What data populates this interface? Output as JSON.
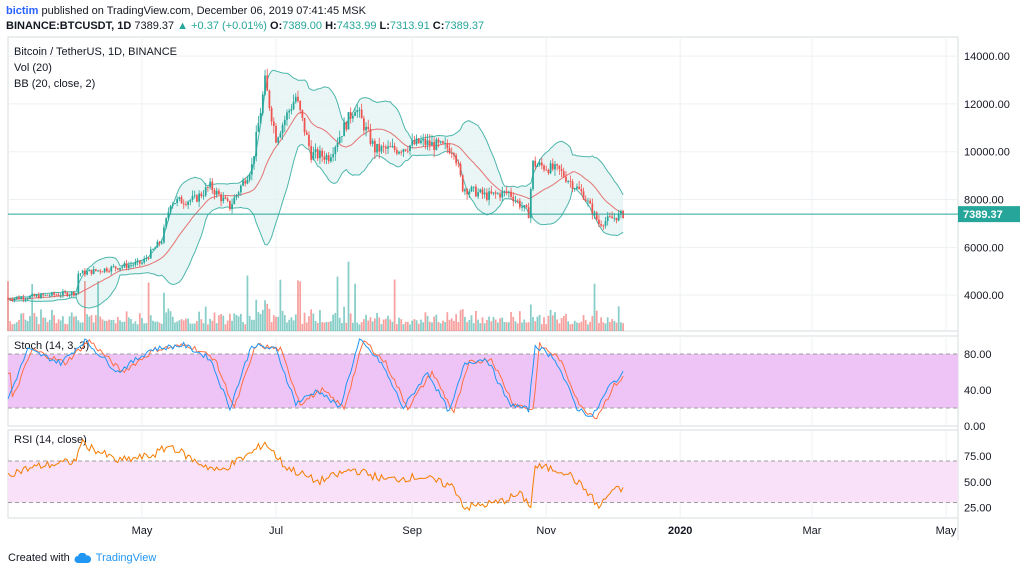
{
  "header": {
    "author": "bictim",
    "published": "published on TradingView.com, December 06, 2019 07:41:45 MSK"
  },
  "ohlc_bar": {
    "symbol": "BINANCE:BTCUSDT, 1D",
    "last": "7389.37",
    "arrow": "▲",
    "change": "+0.37 (+0.01%)",
    "o_label": "O:",
    "o_value": "7389.00",
    "h_label": "H:",
    "h_value": "7433.99",
    "l_label": "L:",
    "l_value": "7313.91",
    "c_label": "C:",
    "c_value": "7389.37"
  },
  "colors": {
    "up": "#26a69a",
    "down": "#ef5350",
    "bb_band": "#4db6ac",
    "bb_fill": "#e0f2f1",
    "bb_basis": "#e57373",
    "stoch_k": "#2196f3",
    "stoch_d": "#ff7043",
    "stoch_fill": "#eec4f7",
    "rsi": "#f57c00",
    "rsi_fill": "#f8e1f9",
    "lastline": "#26a69a"
  },
  "footer": {
    "prefix": "Created with",
    "brand": "TradingView",
    "icon": "tradingview-cloud-icon"
  },
  "chart_data": [
    {
      "type": "candlestick",
      "title": "Bitcoin / TetherUS, 1D, BINANCE",
      "indicators": [
        "Vol (20)",
        "BB (20, close, 2)"
      ],
      "x_ticks": [
        "May",
        "Jul",
        "Sep",
        "Nov",
        "2020",
        "Mar",
        "May"
      ],
      "y_ticks": [
        "14000.00",
        "12000.00",
        "10000.00",
        "8000.00",
        "6000.00",
        "4000.00"
      ],
      "ylim": [
        2500,
        14800
      ],
      "last_price_label": "7389.37",
      "series": [
        {
          "name": "close",
          "points": [
            [
              "2019-03-01",
              3850
            ],
            [
              "2019-03-20",
              4000
            ],
            [
              "2019-04-01",
              4100
            ],
            [
              "2019-04-02",
              4900
            ],
            [
              "2019-04-15",
              5100
            ],
            [
              "2019-05-01",
              5350
            ],
            [
              "2019-05-10",
              6300
            ],
            [
              "2019-05-14",
              7900
            ],
            [
              "2019-05-25",
              8000
            ],
            [
              "2019-06-01",
              8550
            ],
            [
              "2019-06-10",
              7700
            ],
            [
              "2019-06-20",
              9400
            ],
            [
              "2019-06-26",
              12900
            ],
            [
              "2019-07-01",
              10600
            ],
            [
              "2019-07-10",
              12300
            ],
            [
              "2019-07-17",
              9900
            ],
            [
              "2019-07-25",
              9800
            ],
            [
              "2019-08-06",
              11900
            ],
            [
              "2019-08-15",
              10100
            ],
            [
              "2019-08-25",
              10100
            ],
            [
              "2019-09-05",
              10400
            ],
            [
              "2019-09-20",
              10100
            ],
            [
              "2019-09-24",
              8500
            ],
            [
              "2019-10-05",
              8150
            ],
            [
              "2019-10-15",
              8300
            ],
            [
              "2019-10-24",
              7400
            ],
            [
              "2019-10-26",
              9500
            ],
            [
              "2019-11-07",
              9200
            ],
            [
              "2019-11-18",
              8200
            ],
            [
              "2019-11-25",
              7000
            ],
            [
              "2019-12-06",
              7389
            ]
          ]
        }
      ]
    },
    {
      "type": "line",
      "title": "Stoch (14, 3, 3)",
      "y_ticks": [
        "80.00",
        "40.00",
        "0.00"
      ],
      "ylim": [
        0,
        100
      ],
      "bands": [
        20,
        80
      ],
      "series": [
        {
          "name": "%K",
          "points": [
            [
              "2019-03-01",
              30
            ],
            [
              "2019-03-10",
              85
            ],
            [
              "2019-03-25",
              70
            ],
            [
              "2019-04-05",
              95
            ],
            [
              "2019-04-20",
              60
            ],
            [
              "2019-05-05",
              85
            ],
            [
              "2019-05-20",
              90
            ],
            [
              "2019-06-01",
              75
            ],
            [
              "2019-06-10",
              20
            ],
            [
              "2019-06-20",
              90
            ],
            [
              "2019-07-01",
              85
            ],
            [
              "2019-07-10",
              25
            ],
            [
              "2019-07-20",
              40
            ],
            [
              "2019-07-30",
              20
            ],
            [
              "2019-08-08",
              95
            ],
            [
              "2019-08-18",
              70
            ],
            [
              "2019-08-28",
              20
            ],
            [
              "2019-09-08",
              60
            ],
            [
              "2019-09-18",
              15
            ],
            [
              "2019-09-25",
              70
            ],
            [
              "2019-10-05",
              75
            ],
            [
              "2019-10-15",
              25
            ],
            [
              "2019-10-24",
              18
            ],
            [
              "2019-10-27",
              90
            ],
            [
              "2019-11-05",
              75
            ],
            [
              "2019-11-15",
              20
            ],
            [
              "2019-11-22",
              10
            ],
            [
              "2019-11-30",
              45
            ],
            [
              "2019-12-06",
              58
            ]
          ]
        }
      ]
    },
    {
      "type": "line",
      "title": "RSI (14, close)",
      "y_ticks": [
        "75.00",
        "50.00",
        "25.00"
      ],
      "ylim": [
        15,
        100
      ],
      "bands": [
        30,
        70
      ],
      "series": [
        {
          "name": "RSI",
          "points": [
            [
              "2019-03-01",
              58
            ],
            [
              "2019-03-15",
              65
            ],
            [
              "2019-04-01",
              70
            ],
            [
              "2019-04-03",
              88
            ],
            [
              "2019-04-20",
              70
            ],
            [
              "2019-05-05",
              75
            ],
            [
              "2019-05-14",
              85
            ],
            [
              "2019-05-25",
              70
            ],
            [
              "2019-06-05",
              60
            ],
            [
              "2019-06-20",
              78
            ],
            [
              "2019-06-26",
              88
            ],
            [
              "2019-07-05",
              65
            ],
            [
              "2019-07-20",
              50
            ],
            [
              "2019-08-05",
              62
            ],
            [
              "2019-08-20",
              52
            ],
            [
              "2019-09-05",
              55
            ],
            [
              "2019-09-20",
              45
            ],
            [
              "2019-09-25",
              25
            ],
            [
              "2019-10-10",
              30
            ],
            [
              "2019-10-20",
              38
            ],
            [
              "2019-10-25",
              27
            ],
            [
              "2019-10-27",
              65
            ],
            [
              "2019-11-10",
              60
            ],
            [
              "2019-11-20",
              40
            ],
            [
              "2019-11-25",
              25
            ],
            [
              "2019-12-01",
              42
            ],
            [
              "2019-12-06",
              42
            ]
          ]
        }
      ]
    }
  ]
}
